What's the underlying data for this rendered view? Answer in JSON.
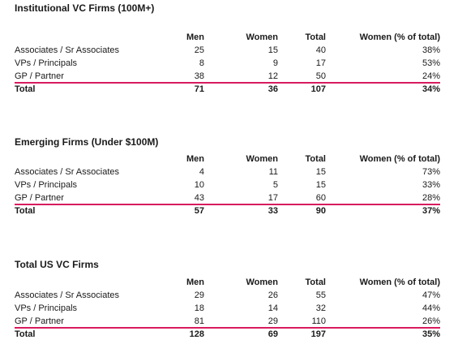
{
  "headers": {
    "men": "Men",
    "women": "Women",
    "total": "Total",
    "pct": "Women (% of total)"
  },
  "sections": [
    {
      "title": "Institutional VC Firms (100M+)",
      "rows": [
        {
          "label": "Associates / Sr Associates",
          "men": "25",
          "women": "15",
          "total": "40",
          "pct": "38%"
        },
        {
          "label": "VPs / Principals",
          "men": "8",
          "women": "9",
          "total": "17",
          "pct": "53%"
        },
        {
          "label": "GP / Partner",
          "men": "38",
          "women": "12",
          "total": "50",
          "pct": "24%"
        }
      ],
      "total_row": {
        "label": "Total",
        "men": "71",
        "women": "36",
        "total": "107",
        "pct": "34%"
      }
    },
    {
      "title": "Emerging Firms (Under $100M)",
      "rows": [
        {
          "label": "Associates / Sr Associates",
          "men": "4",
          "women": "11",
          "total": "15",
          "pct": "73%"
        },
        {
          "label": "VPs / Principals",
          "men": "10",
          "women": "5",
          "total": "15",
          "pct": "33%"
        },
        {
          "label": "GP / Partner",
          "men": "43",
          "women": "17",
          "total": "60",
          "pct": "28%"
        }
      ],
      "total_row": {
        "label": "Total",
        "men": "57",
        "women": "33",
        "total": "90",
        "pct": "37%"
      }
    },
    {
      "title": "Total US VC Firms",
      "rows": [
        {
          "label": "Associates / Sr Associates",
          "men": "29",
          "women": "26",
          "total": "55",
          "pct": "47%"
        },
        {
          "label": "VPs / Principals",
          "men": "18",
          "women": "14",
          "total": "32",
          "pct": "44%"
        },
        {
          "label": "GP / Partner",
          "men": "81",
          "women": "29",
          "total": "110",
          "pct": "26%"
        }
      ],
      "total_row": {
        "label": "Total",
        "men": "128",
        "women": "69",
        "total": "197",
        "pct": "35%"
      }
    }
  ],
  "colors": {
    "total_rule": "#d81b5e"
  }
}
